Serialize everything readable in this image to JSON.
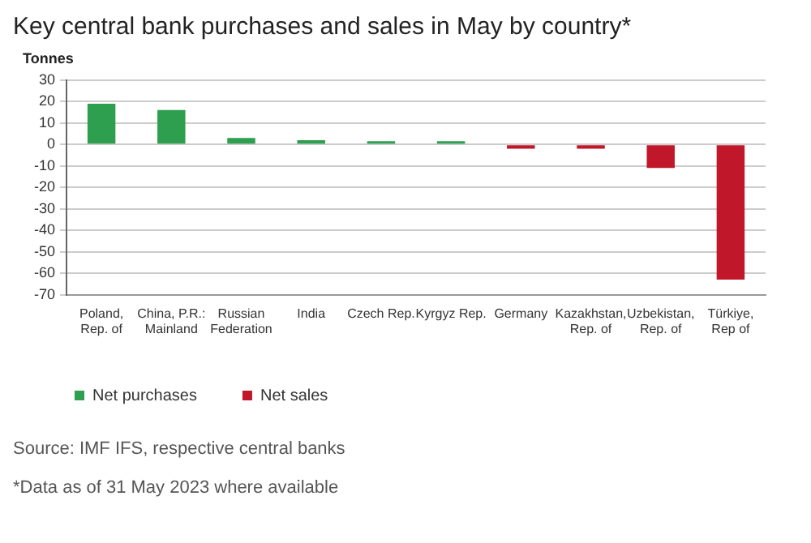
{
  "chart_data": {
    "type": "bar",
    "title": "Key central bank purchases and sales in May by country*",
    "ylabel": "Tonnes",
    "categories": [
      "Poland, Rep. of",
      "China, P.R.: Mainland",
      "Russian Federation",
      "India",
      "Czech Rep.",
      "Kyrgyz Rep.",
      "Germany",
      "Kazakhstan, Rep. of",
      "Uzbekistan, Rep. of",
      "Türkiye, Rep of"
    ],
    "series": [
      {
        "name": "Net purchases",
        "color": "#2e9e4f",
        "values": [
          19,
          16,
          3,
          2,
          1.5,
          1.5,
          null,
          null,
          null,
          null
        ]
      },
      {
        "name": "Net sales",
        "color": "#c0172b",
        "values": [
          null,
          null,
          null,
          null,
          null,
          null,
          -2,
          -2,
          -11,
          -63
        ]
      }
    ],
    "stacked": true,
    "ylim": [
      -70,
      30
    ],
    "yticks": [
      -70,
      -60,
      -50,
      -40,
      -30,
      -20,
      -10,
      0,
      10,
      20,
      30
    ],
    "grid": "y",
    "legend": "bottom left",
    "annotations": [
      "Source: IMF IFS, respective central banks",
      "*Data as of 31 May 2023 where available"
    ]
  }
}
